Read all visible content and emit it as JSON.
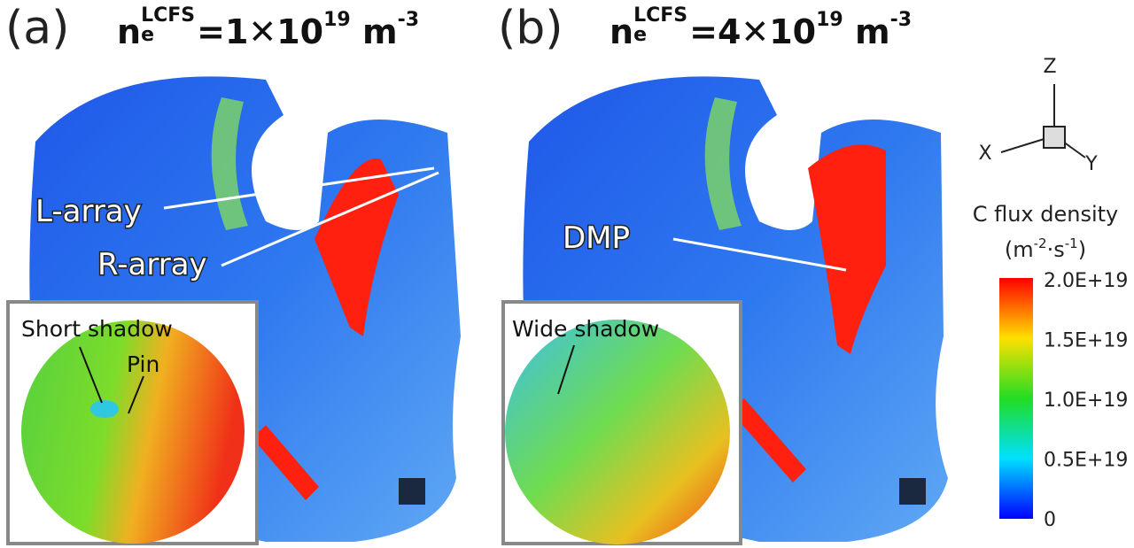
{
  "panels": [
    {
      "label": "(a)",
      "title": {
        "n": "n",
        "sub": "e",
        "sup": "LCFS",
        "eq": "=1✕10",
        "exp": "19",
        "unit": "m",
        "unit_exp": "-3"
      },
      "annotations": [
        "L-array",
        "R-array"
      ],
      "inset": {
        "annotations": [
          "Short shadow",
          "Pin"
        ]
      }
    },
    {
      "label": "(b)",
      "title": {
        "n": "n",
        "sub": "e",
        "sup": "LCFS",
        "eq": "=4✕10",
        "exp": "19",
        "unit": "m",
        "unit_exp": "-3"
      },
      "annotations": [
        "DMP"
      ],
      "inset": {
        "annotations": [
          "Wide shadow"
        ]
      }
    }
  ],
  "axes": {
    "z": "Z",
    "x": "X",
    "y": "Y"
  },
  "colorbar": {
    "title": "C flux density",
    "unit": {
      "open": "(m",
      "exp1": "-2",
      "mid": "·s",
      "exp2": "-1",
      "close": ")"
    },
    "ticks": [
      "2.0E+19",
      "1.5E+19",
      "1.0E+19",
      "0.5E+19",
      "0"
    ]
  }
}
